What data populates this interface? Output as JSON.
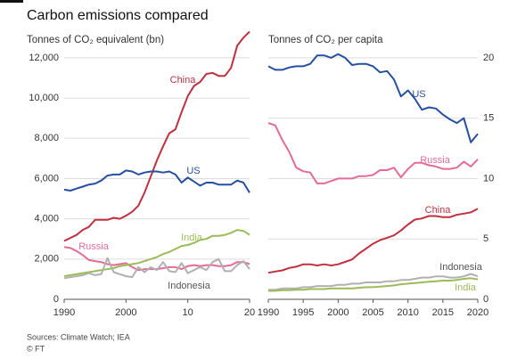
{
  "title": "Carbon emissions compared",
  "source": "Sources: Climate Watch; IEA",
  "copyright": "© FT",
  "chart_data": [
    {
      "type": "line",
      "subtitle": "Tonnes of CO₂ equivalent (bn)",
      "y_axis_position": "left",
      "grid": true,
      "x": [
        1990,
        1991,
        1992,
        1993,
        1994,
        1995,
        1996,
        1997,
        1998,
        1999,
        2000,
        2001,
        2002,
        2003,
        2004,
        2005,
        2006,
        2007,
        2008,
        2009,
        2010,
        2011,
        2012,
        2013,
        2014,
        2015,
        2016,
        2017,
        2018,
        2019,
        2020
      ],
      "xlim": [
        1990,
        2020
      ],
      "xticks": [
        1990,
        2000,
        {
          "value": 2010,
          "label": "10"
        },
        {
          "value": 2020,
          "label": "20"
        }
      ],
      "ylim": [
        0,
        13500
      ],
      "yticks": [
        0,
        {
          "value": 2000,
          "label": "2,000"
        },
        {
          "value": 4000,
          "label": "4,000"
        },
        {
          "value": 6000,
          "label": "6,000"
        },
        {
          "value": 8000,
          "label": "8,000"
        },
        {
          "value": 10000,
          "label": "10,000"
        },
        {
          "value": 12000,
          "label": "12,000"
        }
      ],
      "series": [
        {
          "name": "China",
          "color": "#c0303f",
          "values": [
            2900,
            3050,
            3200,
            3450,
            3600,
            3950,
            3950,
            3950,
            4050,
            4000,
            4150,
            4350,
            4650,
            5300,
            6100,
            6900,
            7600,
            8250,
            8450,
            9300,
            10100,
            10600,
            10800,
            11200,
            11250,
            11100,
            11100,
            11500,
            12600,
            13000,
            13300
          ]
        },
        {
          "name": "US",
          "color": "#264fa0",
          "values": [
            5450,
            5400,
            5500,
            5600,
            5700,
            5750,
            5900,
            6150,
            6200,
            6200,
            6400,
            6350,
            6200,
            6300,
            6350,
            6350,
            6300,
            6350,
            6200,
            5800,
            6050,
            5850,
            5650,
            5800,
            5800,
            5700,
            5700,
            5700,
            5900,
            5800,
            5300
          ]
        },
        {
          "name": "Russia",
          "color": "#e66b93",
          "values": [
            2600,
            2550,
            2400,
            2200,
            1950,
            1900,
            1850,
            1750,
            1700,
            1750,
            1800,
            1600,
            1450,
            1500,
            1500,
            1500,
            1550,
            1600,
            1600,
            1500,
            1650,
            1700,
            1650,
            1700,
            1700,
            1650,
            1650,
            1700,
            1850,
            1850,
            1750
          ]
        },
        {
          "name": "India",
          "color": "#9bbb59",
          "values": [
            1150,
            1200,
            1250,
            1300,
            1350,
            1400,
            1450,
            1500,
            1550,
            1650,
            1700,
            1750,
            1800,
            1900,
            2000,
            2100,
            2250,
            2350,
            2500,
            2650,
            2700,
            2800,
            2950,
            3000,
            3150,
            3150,
            3200,
            3300,
            3450,
            3400,
            3200
          ]
        },
        {
          "name": "Indonesia",
          "color": "#b0b0b0",
          "values": [
            1050,
            1100,
            1150,
            1200,
            1300,
            1200,
            1250,
            2050,
            1350,
            1250,
            1150,
            1100,
            1600,
            1350,
            1600,
            1450,
            1850,
            1400,
            1350,
            1800,
            1300,
            1450,
            1600,
            1450,
            1850,
            2000,
            1400,
            1400,
            1700,
            1900,
            1500
          ]
        }
      ]
    },
    {
      "type": "line",
      "subtitle": "Tonnes of CO₂ per capita",
      "y_axis_position": "right",
      "grid": true,
      "x": [
        1990,
        1991,
        1992,
        1993,
        1994,
        1995,
        1996,
        1997,
        1998,
        1999,
        2000,
        2001,
        2002,
        2003,
        2004,
        2005,
        2006,
        2007,
        2008,
        2009,
        2010,
        2011,
        2012,
        2013,
        2014,
        2015,
        2016,
        2017,
        2018,
        2019,
        2020
      ],
      "xlim": [
        1990,
        2020
      ],
      "xticks": [
        1990,
        1995,
        2000,
        2005,
        2010,
        2015,
        2020
      ],
      "ylim": [
        0,
        22.5
      ],
      "yticks": [
        0,
        5,
        10,
        15,
        20
      ],
      "series": [
        {
          "name": "US",
          "color": "#264fa0",
          "values": [
            19.3,
            19.0,
            19.0,
            19.2,
            19.3,
            19.3,
            19.5,
            20.2,
            20.2,
            20.0,
            20.3,
            20.0,
            19.4,
            19.5,
            19.5,
            19.3,
            18.8,
            18.9,
            18.2,
            16.8,
            17.3,
            16.6,
            15.7,
            15.9,
            15.8,
            15.3,
            14.9,
            14.6,
            15.0,
            13.0,
            13.7
          ]
        },
        {
          "name": "Russia",
          "color": "#e66b93",
          "values": [
            14.6,
            14.4,
            13.2,
            12.2,
            10.9,
            10.6,
            10.5,
            9.6,
            9.6,
            9.8,
            10.0,
            10.0,
            10.0,
            10.2,
            10.2,
            10.3,
            10.7,
            10.7,
            10.9,
            10.1,
            10.8,
            11.3,
            11.3,
            11.1,
            11.0,
            10.8,
            10.8,
            10.9,
            11.4,
            11.0,
            11.6
          ]
        },
        {
          "name": "China",
          "color": "#c0303f",
          "values": [
            2.2,
            2.3,
            2.4,
            2.6,
            2.7,
            2.9,
            2.9,
            2.8,
            2.9,
            2.8,
            2.9,
            3.1,
            3.3,
            3.8,
            4.2,
            4.6,
            4.9,
            5.1,
            5.3,
            5.7,
            6.2,
            6.6,
            6.7,
            6.9,
            6.9,
            6.8,
            6.8,
            7.0,
            7.1,
            7.2,
            7.5
          ]
        },
        {
          "name": "Indonesia",
          "color": "#b0b0b0",
          "values": [
            0.8,
            0.8,
            0.9,
            0.9,
            0.9,
            1.0,
            1.0,
            1.1,
            1.1,
            1.1,
            1.2,
            1.2,
            1.3,
            1.3,
            1.4,
            1.4,
            1.4,
            1.5,
            1.5,
            1.6,
            1.6,
            1.7,
            1.8,
            1.8,
            1.9,
            1.9,
            1.8,
            1.8,
            1.9,
            2.1,
            1.9
          ]
        },
        {
          "name": "India",
          "color": "#9bbb59",
          "values": [
            0.7,
            0.7,
            0.75,
            0.75,
            0.8,
            0.8,
            0.85,
            0.85,
            0.85,
            0.9,
            0.9,
            0.9,
            0.9,
            0.95,
            1.0,
            1.0,
            1.05,
            1.1,
            1.15,
            1.25,
            1.3,
            1.35,
            1.4,
            1.45,
            1.5,
            1.55,
            1.55,
            1.6,
            1.7,
            1.75,
            1.65
          ]
        }
      ]
    }
  ]
}
